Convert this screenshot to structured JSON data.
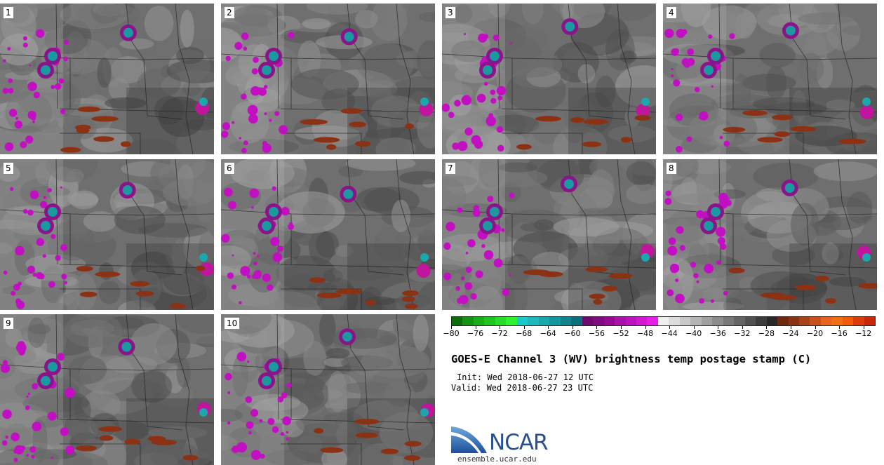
{
  "panels": [
    {
      "label": "1"
    },
    {
      "label": "2"
    },
    {
      "label": "3"
    },
    {
      "label": "4"
    },
    {
      "label": "5"
    },
    {
      "label": "6"
    },
    {
      "label": "7"
    },
    {
      "label": "8"
    },
    {
      "label": "9"
    },
    {
      "label": "10"
    }
  ],
  "colorbar": {
    "colors": [
      "#0a6e0a",
      "#129412",
      "#18ad18",
      "#20c420",
      "#28db28",
      "#30f030",
      "#1cc8c8",
      "#1cb8bd",
      "#19a6ad",
      "#14969e",
      "#0f848c",
      "#0a6f78",
      "#6e0a6e",
      "#800a80",
      "#940a94",
      "#a812a8",
      "#bc14bc",
      "#d018d0",
      "#e61ee6",
      "#f0f0f0",
      "#dcdcdc",
      "#c8c8c8",
      "#b4b4b4",
      "#a0a0a0",
      "#8c8c8c",
      "#787878",
      "#646464",
      "#505050",
      "#3c3c3c",
      "#282828",
      "#6e2810",
      "#8c3214",
      "#aa4218",
      "#c8501c",
      "#e66420",
      "#f06e14",
      "#f05a0a",
      "#dc3c0a",
      "#c82808"
    ],
    "tick_labels": [
      "−80",
      "−76",
      "−72",
      "−68",
      "−64",
      "−60",
      "−56",
      "−52",
      "−48",
      "−44",
      "−40",
      "−36",
      "−32",
      "−28",
      "−24",
      "−20",
      "−16",
      "−12"
    ],
    "tick_values": [
      -80,
      -76,
      -72,
      -68,
      -64,
      -60,
      -56,
      -52,
      -48,
      -44,
      -40,
      -36,
      -32,
      -28,
      -24,
      -20,
      -16,
      -12
    ],
    "range": [
      -80,
      -10
    ]
  },
  "title": "GOES-E Channel 3 (WV) brightness temp postage stamp (C)",
  "init": "Init: Wed 2018-06-27 12 UTC",
  "valid": "Valid: Wed 2018-06-27 23 UTC",
  "logo": {
    "text": "NCAR",
    "url": "ensemble.ucar.edu"
  }
}
